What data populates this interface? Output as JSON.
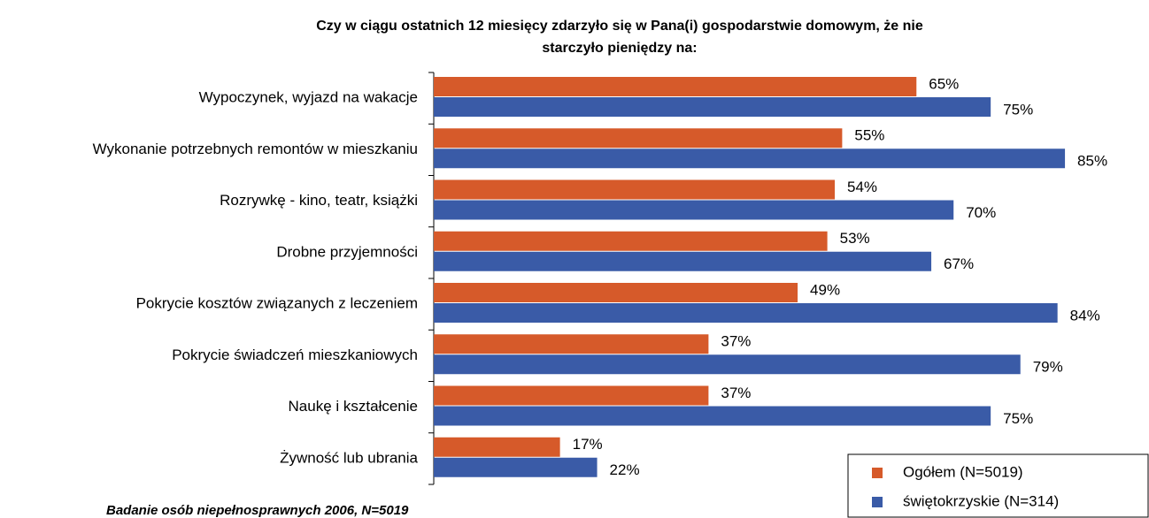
{
  "chart_data": {
    "type": "bar",
    "orientation": "horizontal",
    "title": [
      "Czy w ciągu ostatnich 12 miesięcy zdarzyło się w Pana(i) gospodarstwie domowym, że nie",
      "starczyło pieniędzy na:"
    ],
    "categories": [
      "Wypoczynek, wyjazd na wakacje",
      "Wykonanie potrzebnych remontów w mieszkaniu",
      "Rozrywkę - kino, teatr, książki",
      "Drobne przyjemności",
      "Pokrycie kosztów związanych z leczeniem",
      "Pokrycie świadczeń mieszkaniowych",
      "Naukę i kształcenie",
      "Żywność lub ubrania"
    ],
    "series": [
      {
        "name": "Ogółem (N=5019)",
        "color": "#d65a2a",
        "values": [
          65,
          55,
          54,
          53,
          49,
          37,
          37,
          17
        ],
        "value_labels": [
          "65%",
          "55%",
          "54%",
          "53%",
          "49%",
          "37%",
          "37%",
          "17%"
        ]
      },
      {
        "name": "świętokrzyskie (N=314)",
        "color": "#3a5ba7",
        "values": [
          75,
          85,
          70,
          67,
          84,
          79,
          75,
          22
        ],
        "value_labels": [
          "75%",
          "85%",
          "70%",
          "67%",
          "84%",
          "79%",
          "75%",
          "22%"
        ]
      }
    ],
    "xlim": [
      0,
      90
    ],
    "legend": "bottom-right",
    "footnote": "Badanie osób niepełnosprawnych 2006, N=5019"
  }
}
